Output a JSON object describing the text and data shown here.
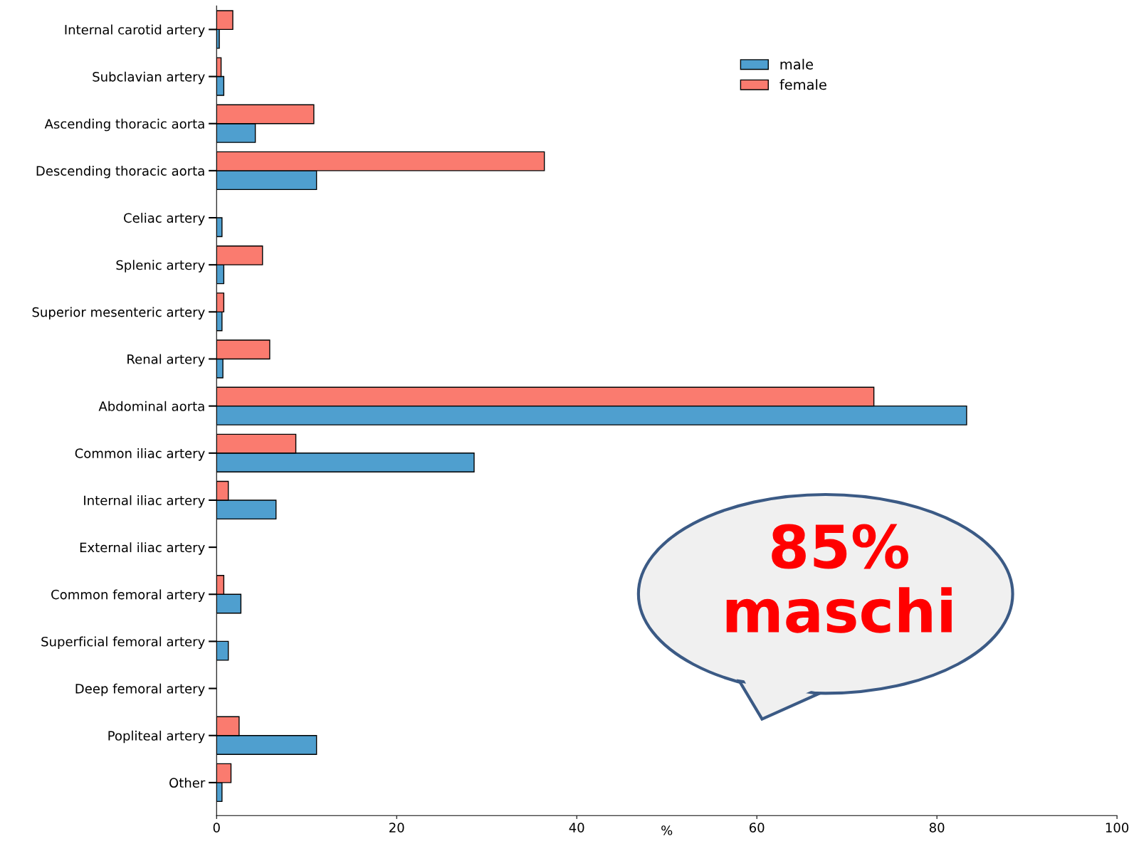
{
  "chart_data": {
    "type": "bar",
    "orientation": "horizontal",
    "xlabel": "%",
    "categories": [
      "Internal carotid artery",
      "Subclavian artery",
      "Ascending thoracic aorta",
      "Descending thoracic aorta",
      "Celiac artery",
      "Splenic artery",
      "Superior mesenteric artery",
      "Renal artery",
      "Abdominal aorta",
      "Common iliac artery",
      "Internal iliac artery",
      "External iliac artery",
      "Common femoral artery",
      "Superficial femoral artery",
      "Deep femoral artery",
      "Popliteal artery",
      "Other"
    ],
    "series": [
      {
        "name": "male",
        "color": "#4f9fcf",
        "values": [
          0.3,
          0.8,
          4.3,
          11.1,
          0.6,
          0.8,
          0.6,
          0.7,
          83.3,
          28.6,
          6.6,
          null,
          2.7,
          1.3,
          null,
          11.1,
          0.6
        ]
      },
      {
        "name": "female",
        "color": "#fa7b6f",
        "values": [
          1.8,
          0.5,
          10.8,
          36.4,
          null,
          5.1,
          0.8,
          5.9,
          73.0,
          8.8,
          1.3,
          null,
          0.8,
          null,
          null,
          2.5,
          1.6
        ]
      }
    ],
    "xlim": [
      0,
      100
    ],
    "xticks": [
      0,
      20,
      40,
      60,
      80,
      100
    ],
    "grid": false,
    "legend": "top",
    "annotations": [
      "85%\nmaschi"
    ]
  }
}
